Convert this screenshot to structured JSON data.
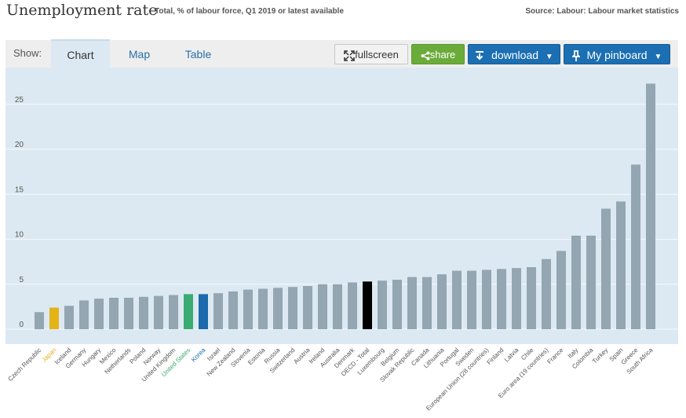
{
  "header": {
    "title": "Unemployment rate",
    "subtitle": "Total, % of labour force, Q1 2019 or latest available",
    "source": "Source: Labour: Labour market statistics"
  },
  "toolbar": {
    "show_label": "Show:",
    "tabs": [
      "Chart",
      "Map",
      "Table"
    ],
    "fullscreen_label": "fullscreen",
    "share_label": "share",
    "download_label": "download",
    "pinboard_label": "My pinboard"
  },
  "colors": {
    "default_bar": "#93a6b2",
    "japan": "#e4b318",
    "united_states": "#3aab73",
    "korea": "#1a6aad",
    "oecd_total": "#000000"
  },
  "chart_data": {
    "type": "bar",
    "title": "Unemployment rate",
    "ylim": [
      0,
      27.5
    ],
    "yticks": [
      0,
      5,
      10,
      15,
      20,
      25
    ],
    "grid": true,
    "categories": [
      "Czech Republic",
      "Japan",
      "Iceland",
      "Germany",
      "Hungary",
      "Mexico",
      "Netherlands",
      "Poland",
      "Norway",
      "United Kingdom",
      "United States",
      "Korea",
      "Israel",
      "New Zealand",
      "Slovenia",
      "Estonia",
      "Russia",
      "Switzerland",
      "Austria",
      "Ireland",
      "Australia",
      "Denmark",
      "OECD - Total",
      "Luxembourg",
      "Belgium",
      "Slovak Republic",
      "Canada",
      "Lithuania",
      "Portugal",
      "Sweden",
      "European Union (28 countries)",
      "Finland",
      "Latvia",
      "Chile",
      "Euro area (19 countries)",
      "France",
      "Italy",
      "Colombia",
      "Turkey",
      "Spain",
      "Greece",
      "South Africa"
    ],
    "values": [
      1.9,
      2.4,
      2.6,
      3.2,
      3.4,
      3.5,
      3.5,
      3.6,
      3.7,
      3.8,
      3.9,
      3.9,
      4.0,
      4.2,
      4.4,
      4.5,
      4.6,
      4.7,
      4.8,
      5.0,
      5.0,
      5.2,
      5.3,
      5.4,
      5.5,
      5.8,
      5.8,
      6.1,
      6.5,
      6.5,
      6.6,
      6.7,
      6.8,
      6.9,
      7.8,
      8.7,
      10.4,
      10.4,
      13.4,
      14.2,
      18.3,
      27.3
    ],
    "highlight": {
      "Japan": "japan",
      "United States": "united_states",
      "Korea": "korea",
      "OECD - Total": "oecd_total"
    }
  }
}
